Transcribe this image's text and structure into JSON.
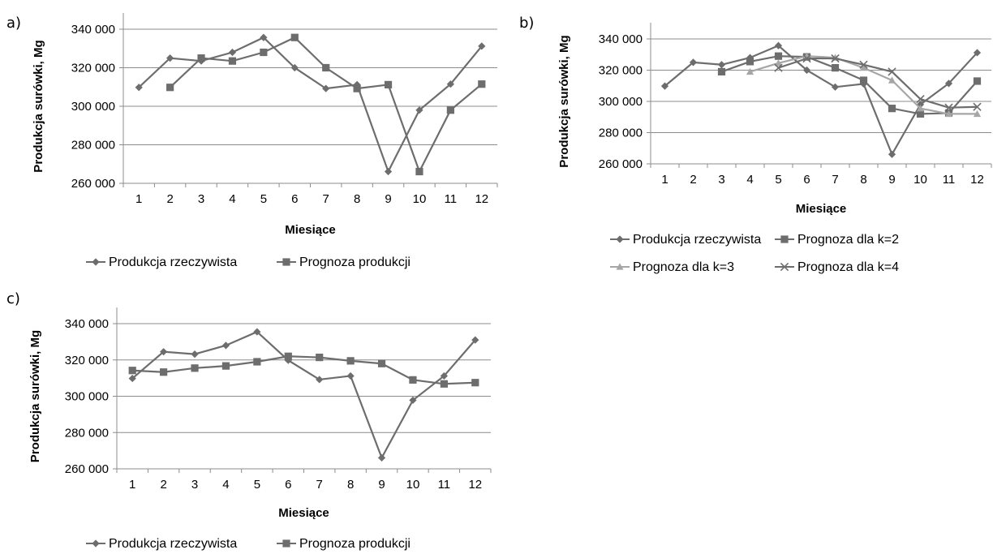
{
  "panels": [
    {
      "label": "a)"
    },
    {
      "label": "b)"
    },
    {
      "label": "c)"
    }
  ],
  "chart_data": [
    {
      "type": "line",
      "x": [
        "1",
        "2",
        "3",
        "4",
        "5",
        "6",
        "7",
        "8",
        "9",
        "10",
        "11",
        "12"
      ],
      "xlabel": "Miesiące",
      "ylabel": "Produkcja surówki, Mg",
      "ylim": [
        260000,
        340000
      ],
      "yticks": [
        "260 000",
        "280 000",
        "300 000",
        "320 000",
        "340 000"
      ],
      "grid": "horizontal",
      "legend": "bottom",
      "series": [
        {
          "name": "Produkcja rzeczywista",
          "marker": "diamond",
          "color": "#6d6d6d",
          "values": [
            309800,
            325000,
            323500,
            328000,
            335700,
            320000,
            309200,
            311200,
            266100,
            298000,
            311500,
            331200
          ]
        },
        {
          "name": "Prognoza produkcji",
          "marker": "square",
          "color": "#6d6d6d",
          "values": [
            null,
            309800,
            325000,
            323500,
            328000,
            335700,
            320000,
            309200,
            311200,
            266100,
            298000,
            311500
          ]
        }
      ]
    },
    {
      "type": "line",
      "x": [
        "1",
        "2",
        "3",
        "4",
        "5",
        "6",
        "7",
        "8",
        "9",
        "10",
        "11",
        "12"
      ],
      "xlabel": "Miesiące",
      "ylabel": "Produkcja surówki, Mg",
      "ylim": [
        260000,
        340000
      ],
      "yticks": [
        "260 000",
        "280 000",
        "300 000",
        "320 000",
        "340 000"
      ],
      "grid": "horizontal",
      "legend": "bottom",
      "series": [
        {
          "name": "Produkcja rzeczywista",
          "marker": "diamond",
          "color": "#6d6d6d",
          "values": [
            309800,
            325000,
            323500,
            328000,
            335700,
            320000,
            309200,
            311200,
            266100,
            298000,
            311500,
            331200
          ]
        },
        {
          "name": "Prognoza dla k=2",
          "marker": "square",
          "color": "#6d6d6d",
          "values": [
            null,
            null,
            319000,
            325500,
            329000,
            328500,
            321500,
            313500,
            295500,
            292000,
            292500,
            313000
          ]
        },
        {
          "name": "Prognoza dla k=3",
          "marker": "triangle",
          "color": "#a6a6a6",
          "values": [
            null,
            null,
            null,
            319000,
            324500,
            329000,
            328000,
            321500,
            313500,
            295500,
            292000,
            292000
          ]
        },
        {
          "name": "Prognoza dla k=4",
          "marker": "x",
          "color": "#6d6d6d",
          "values": [
            null,
            null,
            null,
            null,
            321500,
            327500,
            327500,
            323500,
            319000,
            301500,
            296000,
            296500
          ]
        }
      ]
    },
    {
      "type": "line",
      "x": [
        "1",
        "2",
        "3",
        "4",
        "5",
        "6",
        "7",
        "8",
        "9",
        "10",
        "11",
        "12"
      ],
      "xlabel": "Miesiące",
      "ylabel": "Produkcja surówki, Mg",
      "ylim": [
        260000,
        340000
      ],
      "yticks": [
        "260 000",
        "280 000",
        "300 000",
        "320 000",
        "340 000"
      ],
      "grid": "horizontal",
      "legend": "bottom",
      "series": [
        {
          "name": "Produkcja rzeczywista",
          "marker": "diamond",
          "color": "#6d6d6d",
          "values": [
            309800,
            324500,
            323200,
            328000,
            335500,
            319800,
            309200,
            311200,
            266100,
            297800,
            311200,
            331000
          ]
        },
        {
          "name": "Prognoza produkcji",
          "marker": "square",
          "color": "#6d6d6d",
          "values": [
            314200,
            313300,
            315500,
            316700,
            319000,
            322000,
            321400,
            319500,
            318000,
            309000,
            306800,
            307500
          ]
        }
      ]
    }
  ]
}
